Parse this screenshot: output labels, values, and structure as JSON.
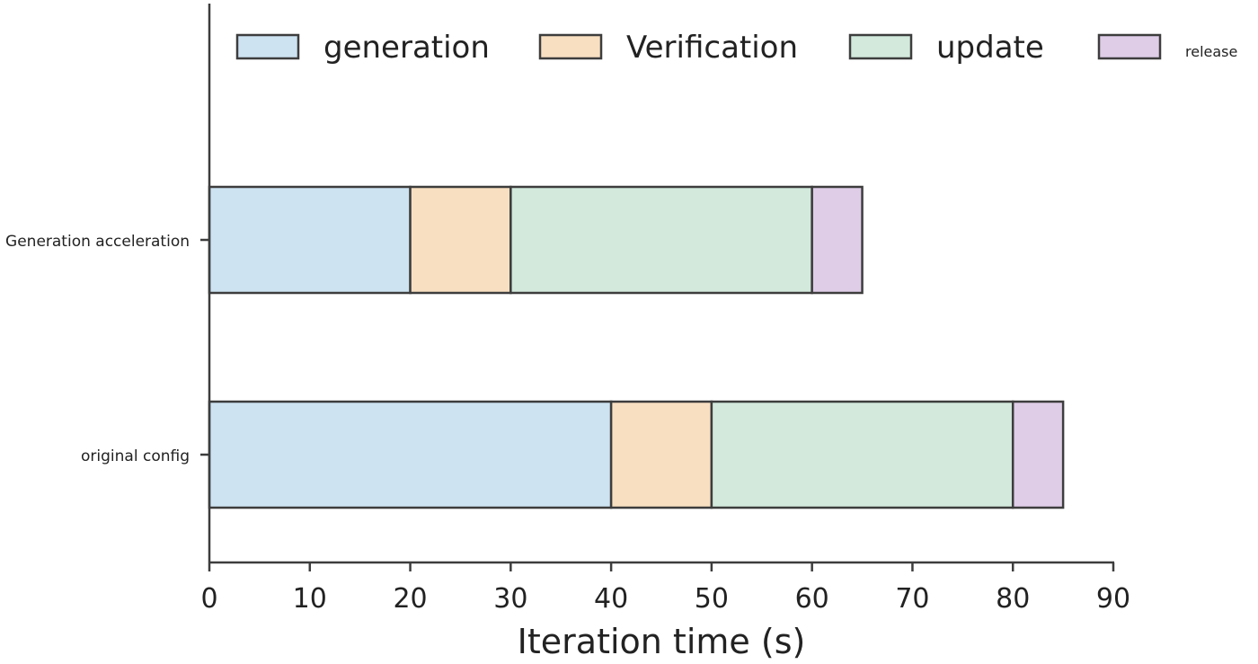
{
  "chart_data": {
    "type": "bar",
    "orientation": "horizontal",
    "stacked": true,
    "categories": [
      "Generation acceleration",
      "original config"
    ],
    "series": [
      {
        "name": "generation",
        "values": [
          20,
          40
        ],
        "color": "#cde3f2"
      },
      {
        "name": "Verification",
        "values": [
          10,
          10
        ],
        "color": "#f8dfc1"
      },
      {
        "name": "update",
        "values": [
          30,
          30
        ],
        "color": "#d2e9dc"
      },
      {
        "name": "release",
        "values": [
          5,
          5
        ],
        "color": "#dfcde8"
      }
    ],
    "xlabel": "Iteration time (s)",
    "ylabel": "",
    "xlim": [
      0,
      90
    ],
    "xticks": [
      0,
      10,
      20,
      30,
      40,
      50,
      60,
      70,
      80,
      90
    ],
    "grid": false,
    "legend_position": "top",
    "edge_color": "#3d3d3d"
  }
}
